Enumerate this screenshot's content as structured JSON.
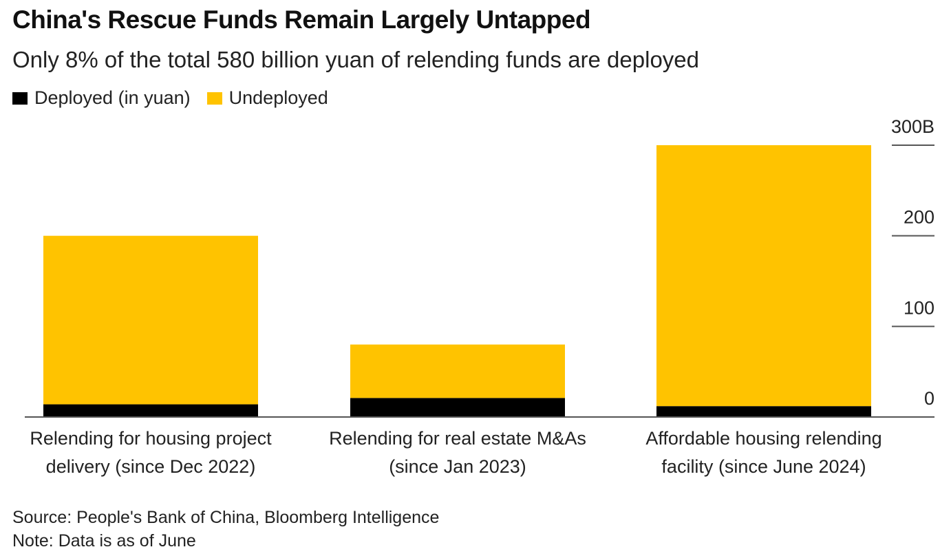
{
  "chart_data": {
    "type": "bar",
    "stacked": true,
    "title": "China's Rescue Funds Remain Largely Untapped",
    "subtitle": "Only 8% of the total 580 billion yuan of relending funds are deployed",
    "categories": [
      [
        "Relending for housing project",
        "delivery (since Dec 2022)"
      ],
      [
        "Relending for real estate M&As",
        "(since Jan 2023)"
      ],
      [
        "Affordable housing relending",
        "facility (since June 2024)"
      ]
    ],
    "series": [
      {
        "name": "Deployed (in yuan)",
        "color": "#000000",
        "values": [
          14,
          21,
          12
        ]
      },
      {
        "name": "Undeployed",
        "color": "#FFC300",
        "values": [
          186,
          59,
          288
        ]
      }
    ],
    "ylim": [
      0,
      300
    ],
    "yticks": [
      {
        "value": 0,
        "label": "0"
      },
      {
        "value": 100,
        "label": "100"
      },
      {
        "value": 200,
        "label": "200"
      },
      {
        "value": 300,
        "label": "300B"
      }
    ],
    "axis_position": "right"
  },
  "footer": {
    "source": "Source: People's Bank of China, Bloomberg Intelligence",
    "note": "Note: Data is as of June"
  },
  "colors": {
    "deployed": "#000000",
    "undeployed": "#FFC300",
    "axis": "#555555"
  }
}
